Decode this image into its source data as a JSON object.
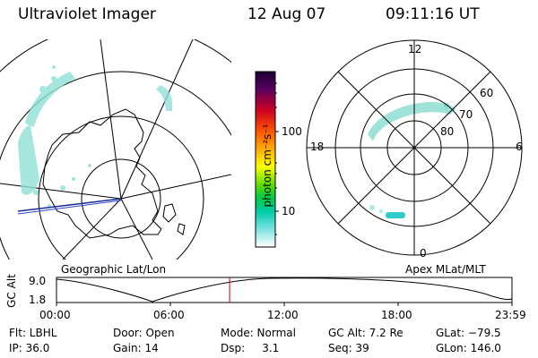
{
  "header": {
    "title": "Ultraviolet Imager",
    "date": "12 Aug 07",
    "time": "09:11:16 UT"
  },
  "colorbar": {
    "unit_label": "photon cm⁻²s⁻¹",
    "ticks": [
      "100",
      "10"
    ]
  },
  "left_panel": {
    "caption": "Geographic Lat/Lon"
  },
  "right_panel": {
    "caption": "Apex MLat/MLT",
    "mlt_labels": {
      "top": "12",
      "left": "18",
      "right": "6",
      "bottom": "0"
    },
    "lat_labels": [
      "60",
      "70",
      "80"
    ]
  },
  "orbit": {
    "ylabel": "GC Alt",
    "ytick_top": "9.0",
    "ytick_bottom": "1.8",
    "xticks": [
      "00:00",
      "06:00",
      "12:00",
      "18:00",
      "23:59"
    ],
    "current_time_fraction": 0.38
  },
  "info": {
    "flt": "Flt: LBHL",
    "ip": "IP: 36.0",
    "door": "Door: Open",
    "gain": "Gain: 14",
    "mode": "Mode: Normal",
    "dsp": "Dsp:     3.1",
    "gcalt": "GC Alt: 7.2 Re",
    "seq": "Seq: 39",
    "glat": "GLat: −79.5",
    "glon": "GLon: 146.0"
  },
  "colors": {
    "aurora": "#7fd8cc",
    "marker": "#cc0000",
    "track": "#1a2a99"
  }
}
